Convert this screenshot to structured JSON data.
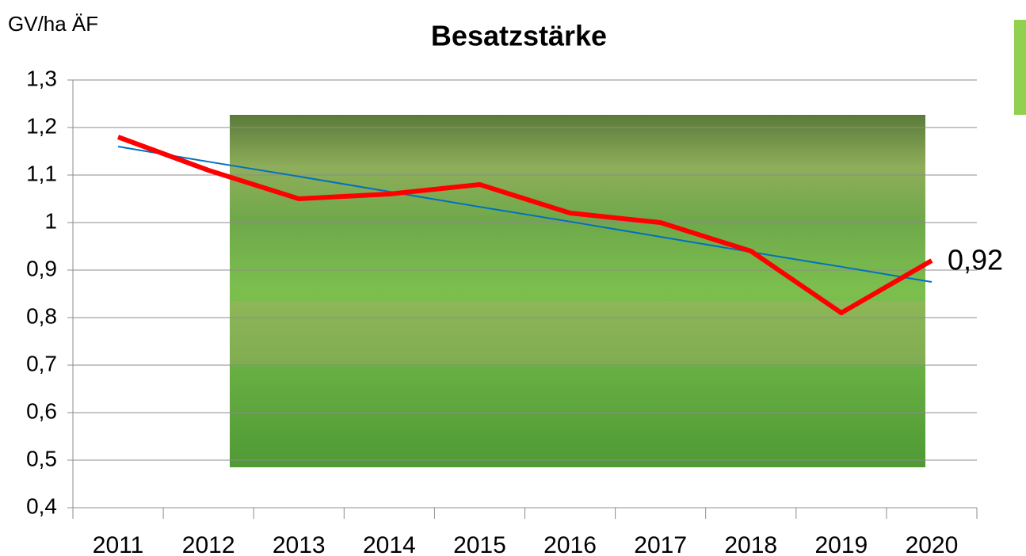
{
  "chart_data": {
    "type": "line",
    "title": "Besatzstärke",
    "y_label": "GV/ha ÄF",
    "categories": [
      "2011",
      "2012",
      "2013",
      "2014",
      "2015",
      "2016",
      "2017",
      "2018",
      "2019",
      "2020"
    ],
    "series": [
      {
        "color": "#ff0000",
        "values": [
          1.18,
          1.11,
          1.05,
          1.06,
          1.08,
          1.02,
          1.0,
          0.94,
          0.81,
          0.92
        ],
        "value_labels": [
          null,
          null,
          null,
          null,
          null,
          null,
          null,
          null,
          null,
          "0,92"
        ]
      },
      {
        "color": "#0070c0",
        "values": [
          1.16,
          1.128,
          1.097,
          1.065,
          1.033,
          1.002,
          0.97,
          0.938,
          0.907,
          0.875
        ]
      }
    ],
    "ylim": [
      0.4,
      1.3
    ],
    "yticks": [
      {
        "value": 0.4,
        "label": "0,4"
      },
      {
        "value": 0.5,
        "label": "0,5"
      },
      {
        "value": 0.6,
        "label": "0,6"
      },
      {
        "value": 0.7,
        "label": "0,7"
      },
      {
        "value": 0.8,
        "label": "0,8"
      },
      {
        "value": 0.9,
        "label": "0,9"
      },
      1,
      {
        "value": 1.1,
        "label": "1,1"
      },
      {
        "value": 1.2,
        "label": "1,2"
      },
      {
        "value": 1.3,
        "label": "1,3"
      }
    ],
    "grid": true
  }
}
